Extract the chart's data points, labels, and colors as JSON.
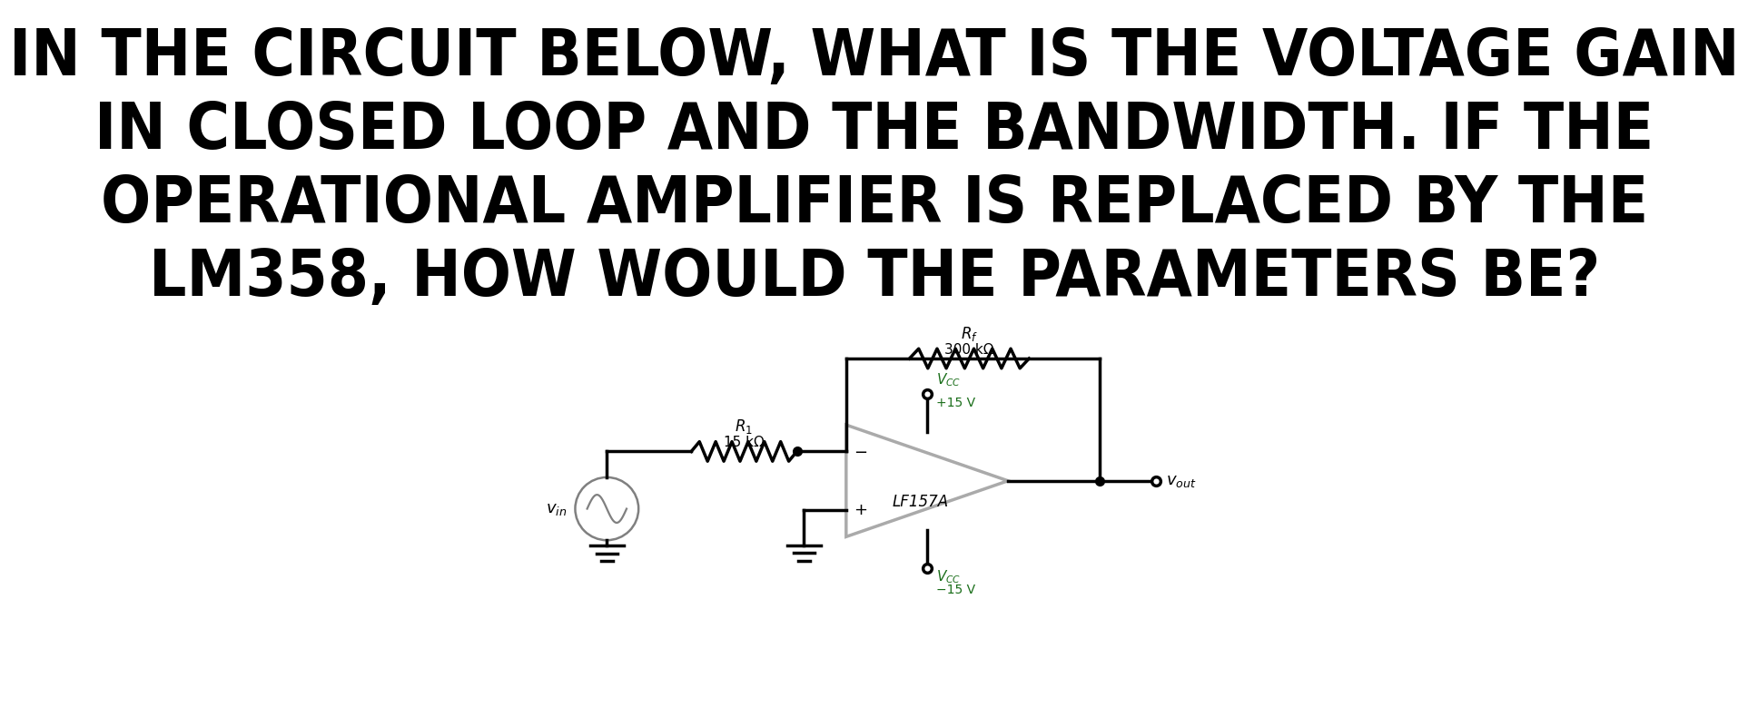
{
  "title_lines": [
    "IN THE CIRCUIT BELOW, WHAT IS THE VOLTAGE GAIN",
    "IN CLOSED LOOP AND THE BANDWIDTH. IF THE",
    "OPERATIONAL AMPLIFIER IS REPLACED BY THE",
    "LM358, HOW WOULD THE PARAMETERS BE?"
  ],
  "title_fontsize": 52,
  "title_color": "#000000",
  "bg_color": "#ffffff",
  "circuit": {
    "r1_label": "$R_1$",
    "r1_value": "15 kΩ",
    "rf_label": "$R_f$",
    "rf_value": "300 kΩ",
    "vcc_pos_label": "$V_{CC}$",
    "vcc_pos_value": "+15 V",
    "vcc_neg_label": "$V_{CC}$",
    "vcc_neg_value": "−15 V",
    "vin_label": "$v_{in}$",
    "vout_label": "$v_{out}$",
    "opamp_label": "LF157A",
    "wire_color": "#000000",
    "opamp_color": "#aaaaaa",
    "label_color": "#000000",
    "vcc_color": "#1a6e1a",
    "vin_circle_color": "#808080",
    "line_width": 2.5
  }
}
